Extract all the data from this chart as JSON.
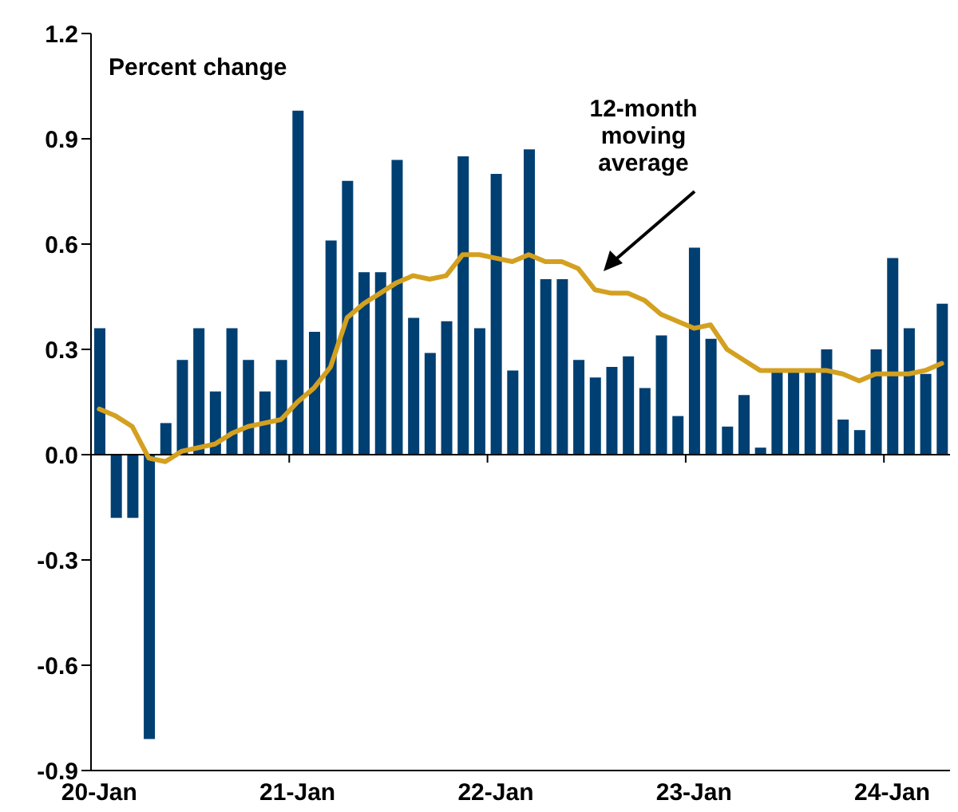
{
  "chart_data": {
    "type": "bar",
    "ylabel": "Percent change",
    "categories": [
      "20-Jan",
      null,
      null,
      null,
      null,
      null,
      null,
      null,
      null,
      null,
      null,
      null,
      "21-Jan",
      null,
      null,
      null,
      null,
      null,
      null,
      null,
      null,
      null,
      null,
      null,
      "22-Jan",
      null,
      null,
      null,
      null,
      null,
      null,
      null,
      null,
      null,
      null,
      null,
      "23-Jan",
      null,
      null,
      null,
      null,
      null,
      null,
      null,
      null,
      null,
      null,
      null,
      "24-Jan",
      null,
      null,
      null
    ],
    "series": [
      {
        "color": "#003f72",
        "values": [
          0.36,
          -0.18,
          -0.18,
          -0.81,
          0.09,
          0.27,
          0.36,
          0.18,
          0.36,
          0.27,
          0.18,
          0.27,
          0.98,
          0.35,
          0.61,
          0.78,
          0.52,
          0.52,
          0.84,
          0.39,
          0.29,
          0.38,
          0.85,
          0.36,
          0.8,
          0.24,
          0.87,
          0.5,
          0.5,
          0.27,
          0.22,
          0.25,
          0.28,
          0.19,
          0.34,
          0.11,
          0.59,
          0.33,
          0.08,
          0.17,
          0.02,
          0.24,
          0.24,
          0.24,
          0.3,
          0.1,
          0.07,
          0.3,
          0.56,
          0.36,
          0.23,
          0.43
        ]
      },
      {
        "type": "line",
        "name": "12-month moving average",
        "color": "#d4a020",
        "values": [
          0.13,
          0.11,
          0.08,
          -0.01,
          -0.02,
          0.01,
          0.02,
          0.03,
          0.06,
          0.08,
          0.09,
          0.1,
          0.15,
          0.19,
          0.25,
          0.39,
          0.43,
          0.46,
          0.49,
          0.51,
          0.5,
          0.51,
          0.57,
          0.57,
          0.56,
          0.55,
          0.57,
          0.55,
          0.55,
          0.53,
          0.47,
          0.46,
          0.46,
          0.44,
          0.4,
          0.38,
          0.36,
          0.37,
          0.3,
          0.27,
          0.24,
          0.24,
          0.24,
          0.24,
          0.24,
          0.23,
          0.21,
          0.23,
          0.23,
          0.23,
          0.24,
          0.26
        ]
      }
    ],
    "ylim": [
      -0.9,
      1.2
    ],
    "yticks": [
      {
        "value": -0.9,
        "label": "-0.9"
      },
      {
        "value": -0.6,
        "label": "-0.6"
      },
      {
        "value": -0.3,
        "label": "-0.3"
      },
      {
        "value": 0,
        "label": "0.0"
      },
      {
        "value": 0.3,
        "label": "0.3"
      },
      {
        "value": 0.6,
        "label": "0.6"
      },
      {
        "value": 0.9,
        "label": "0.9"
      },
      {
        "value": 1.2,
        "label": "1.2"
      }
    ],
    "grid": false,
    "ref_lines": [
      {
        "axis": "y",
        "value": 0,
        "color": "#000000"
      }
    ],
    "legend": false
  }
}
